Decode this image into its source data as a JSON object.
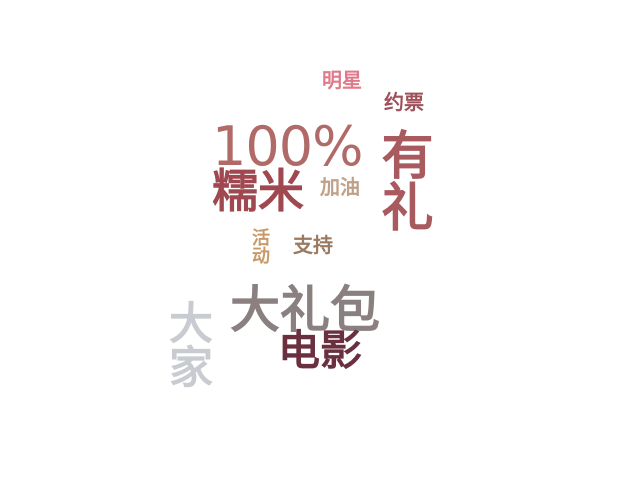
{
  "word_cloud": {
    "words": [
      {
        "key": "mingxing",
        "text": "明星",
        "color": "#e07a8a"
      },
      {
        "key": "yuepiao",
        "text": "约票",
        "color": "#a0505a"
      },
      {
        "key": "pct",
        "text": "100%",
        "color": "#b06a68"
      },
      {
        "key": "youli",
        "text": "有礼",
        "color": "#a85a5e"
      },
      {
        "key": "nuomi",
        "text": "糯米",
        "color": "#a0484f"
      },
      {
        "key": "jiayou",
        "text": "加油",
        "color": "#c0a088"
      },
      {
        "key": "huodong",
        "text": "活动",
        "color": "#c89a6a"
      },
      {
        "key": "zhichi",
        "text": "支持",
        "color": "#9a7a60"
      },
      {
        "key": "dalibao",
        "text": "大礼包",
        "color": "#8a8080"
      },
      {
        "key": "dajia",
        "text": "大家",
        "color": "#c8ccd0"
      },
      {
        "key": "dianying",
        "text": "电影",
        "color": "#6a3040"
      }
    ]
  }
}
